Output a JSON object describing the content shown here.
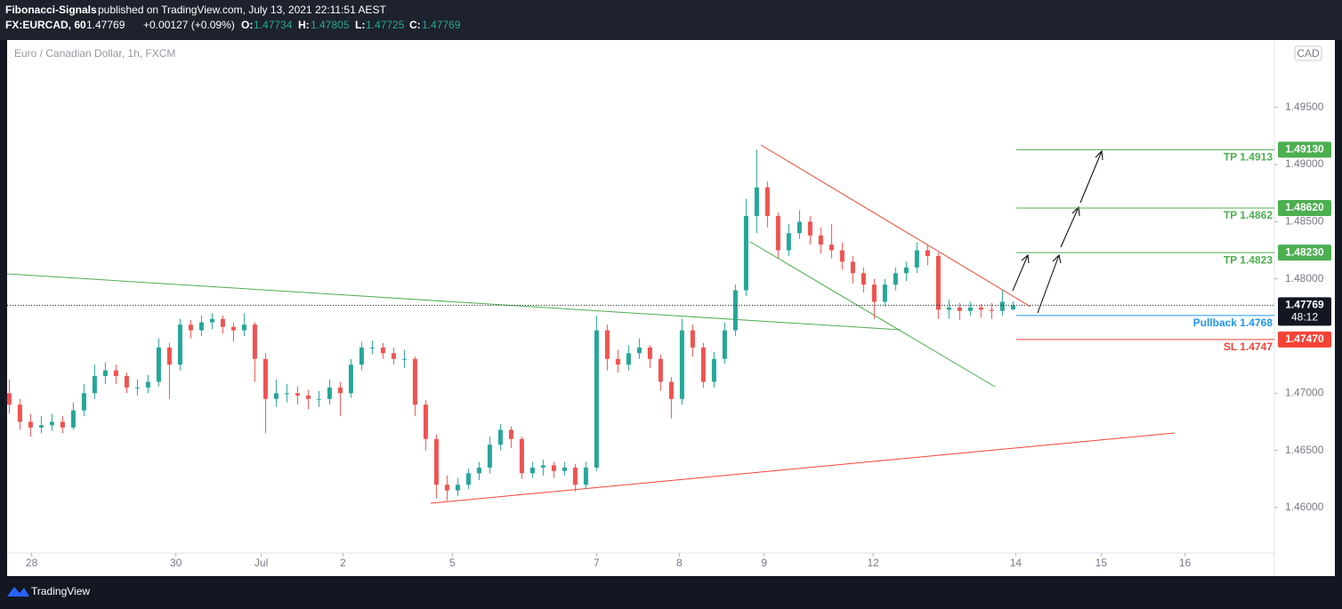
{
  "header": {
    "publisher": "Fibonacci-Signals",
    "published": "published on TradingView.com, July 13, 2021 22:11:51 AEST",
    "symbol": "FX:EURCAD, 60",
    "last": "1.47769",
    "change": "+0.00127 (+0.09%)",
    "o_label": "O:",
    "o": "1.47734",
    "h_label": "H:",
    "h": "1.47805",
    "l_label": "L:",
    "l": "1.47725",
    "c_label": "C:",
    "c": "1.47769"
  },
  "footer": {
    "brand": "TradingView"
  },
  "chart_data": {
    "type": "candlestick",
    "title": "Euro / Canadian Dollar, 1h, FXCM",
    "currency": "CAD",
    "up_color": "#26a69a",
    "down_color": "#ef5350",
    "xlim": [
      -0.2,
      118.47
    ],
    "ylim": [
      1.45603,
      1.50089
    ],
    "xticks": [
      {
        "value": 2.1,
        "label": "28"
      },
      {
        "value": 15.6,
        "label": "30"
      },
      {
        "value": 23.6,
        "label": "Jul"
      },
      {
        "value": 31.25,
        "label": "2"
      },
      {
        "value": 41.5,
        "label": "5"
      },
      {
        "value": 55,
        "label": "7"
      },
      {
        "value": 62.75,
        "label": "8"
      },
      {
        "value": 70.7,
        "label": "9"
      },
      {
        "value": 80.9,
        "label": "12"
      },
      {
        "value": 94.25,
        "label": "14"
      },
      {
        "value": 102.25,
        "label": "15"
      },
      {
        "value": 110.1,
        "label": "16"
      }
    ],
    "yticks": [
      {
        "value": 1.46,
        "label": "1.46000"
      },
      {
        "value": 1.465,
        "label": "1.46500"
      },
      {
        "value": 1.47,
        "label": "1.47000"
      },
      {
        "value": 1.48,
        "label": "1.48000"
      },
      {
        "value": 1.485,
        "label": "1.48500"
      },
      {
        "value": 1.49,
        "label": "1.49000"
      },
      {
        "value": 1.495,
        "label": "1.49500"
      }
    ],
    "current": {
      "value": 1.47769,
      "label": "1.47769",
      "countdown": "48:12"
    },
    "levels": [
      {
        "name": "TP 1.4913",
        "value": 1.4913,
        "label": "1.49130",
        "color": "#4caf50"
      },
      {
        "name": "TP 1.4862",
        "value": 1.4862,
        "label": "1.48620",
        "color": "#4caf50"
      },
      {
        "name": "TP 1.4823",
        "value": 1.4823,
        "label": "1.48230",
        "color": "#4caf50"
      },
      {
        "name": "Pullback 1.4768",
        "value": 1.4768,
        "label": "1.47680",
        "color": "#2196f3"
      },
      {
        "name": "SL 1.4747",
        "value": 1.4747,
        "label": "1.47470",
        "color": "#f44336"
      }
    ],
    "ohlc": [
      [
        1.47,
        1.4712,
        1.4682,
        1.469
      ],
      [
        1.469,
        1.4695,
        1.4668,
        1.4675
      ],
      [
        1.4675,
        1.4682,
        1.4662,
        1.467
      ],
      [
        1.467,
        1.468,
        1.4665,
        1.4672
      ],
      [
        1.4672,
        1.4682,
        1.4667,
        1.4675
      ],
      [
        1.4675,
        1.468,
        1.4665,
        1.467
      ],
      [
        1.467,
        1.4692,
        1.4668,
        1.4685
      ],
      [
        1.4685,
        1.4708,
        1.468,
        1.47
      ],
      [
        1.47,
        1.4725,
        1.4695,
        1.4715
      ],
      [
        1.4715,
        1.4727,
        1.4708,
        1.472
      ],
      [
        1.472,
        1.4725,
        1.4708,
        1.4715
      ],
      [
        1.4715,
        1.4718,
        1.47,
        1.4705
      ],
      [
        1.4705,
        1.4712,
        1.4698,
        1.4705
      ],
      [
        1.4705,
        1.4716,
        1.47,
        1.471
      ],
      [
        1.471,
        1.4748,
        1.4706,
        1.474
      ],
      [
        1.474,
        1.4744,
        1.4695,
        1.4725
      ],
      [
        1.4725,
        1.4765,
        1.472,
        1.476
      ],
      [
        1.476,
        1.4764,
        1.4748,
        1.4755
      ],
      [
        1.4755,
        1.4768,
        1.475,
        1.4762
      ],
      [
        1.4762,
        1.477,
        1.4756,
        1.4765
      ],
      [
        1.4765,
        1.4768,
        1.4752,
        1.4758
      ],
      [
        1.4758,
        1.4762,
        1.4745,
        1.4755
      ],
      [
        1.4755,
        1.477,
        1.475,
        1.476
      ],
      [
        1.476,
        1.4762,
        1.471,
        1.473
      ],
      [
        1.473,
        1.4735,
        1.4665,
        1.4695
      ],
      [
        1.4695,
        1.4712,
        1.4688,
        1.47
      ],
      [
        1.47,
        1.4708,
        1.4692,
        1.47
      ],
      [
        1.47,
        1.4706,
        1.469,
        1.4698
      ],
      [
        1.4698,
        1.4703,
        1.4686,
        1.4695
      ],
      [
        1.4695,
        1.4702,
        1.4688,
        1.4695
      ],
      [
        1.4695,
        1.4712,
        1.469,
        1.4705
      ],
      [
        1.4705,
        1.471,
        1.468,
        1.47
      ],
      [
        1.47,
        1.473,
        1.4696,
        1.4725
      ],
      [
        1.4725,
        1.4745,
        1.472,
        1.474
      ],
      [
        1.474,
        1.4746,
        1.4734,
        1.474
      ],
      [
        1.474,
        1.4744,
        1.473,
        1.4735
      ],
      [
        1.4735,
        1.474,
        1.4725,
        1.473
      ],
      [
        1.473,
        1.4738,
        1.4722,
        1.473
      ],
      [
        1.473,
        1.4732,
        1.468,
        1.469
      ],
      [
        1.469,
        1.4694,
        1.465,
        1.466
      ],
      [
        1.466,
        1.4664,
        1.4608,
        1.462
      ],
      [
        1.462,
        1.4628,
        1.4606,
        1.4615
      ],
      [
        1.4615,
        1.4626,
        1.461,
        1.462
      ],
      [
        1.462,
        1.4634,
        1.4616,
        1.463
      ],
      [
        1.463,
        1.464,
        1.4624,
        1.4635
      ],
      [
        1.4635,
        1.4662,
        1.463,
        1.4655
      ],
      [
        1.4655,
        1.4673,
        1.465,
        1.4668
      ],
      [
        1.4668,
        1.4671,
        1.4652,
        1.466
      ],
      [
        1.466,
        1.4662,
        1.4625,
        1.463
      ],
      [
        1.463,
        1.464,
        1.4626,
        1.4635
      ],
      [
        1.4635,
        1.4642,
        1.4628,
        1.4637
      ],
      [
        1.4637,
        1.464,
        1.4626,
        1.4632
      ],
      [
        1.4632,
        1.464,
        1.4628,
        1.4635
      ],
      [
        1.4635,
        1.4638,
        1.4614,
        1.462
      ],
      [
        1.462,
        1.464,
        1.4616,
        1.4635
      ],
      [
        1.4635,
        1.4768,
        1.4632,
        1.4755
      ],
      [
        1.4755,
        1.476,
        1.472,
        1.473
      ],
      [
        1.473,
        1.4738,
        1.4718,
        1.4725
      ],
      [
        1.4725,
        1.4742,
        1.472,
        1.4735
      ],
      [
        1.4735,
        1.4748,
        1.473,
        1.474
      ],
      [
        1.474,
        1.4742,
        1.4722,
        1.473
      ],
      [
        1.473,
        1.4734,
        1.4702,
        1.471
      ],
      [
        1.471,
        1.4714,
        1.4678,
        1.4695
      ],
      [
        1.4695,
        1.4765,
        1.469,
        1.4755
      ],
      [
        1.4755,
        1.476,
        1.4732,
        1.474
      ],
      [
        1.474,
        1.4744,
        1.4705,
        1.471
      ],
      [
        1.471,
        1.4736,
        1.4705,
        1.473
      ],
      [
        1.473,
        1.4762,
        1.4726,
        1.4755
      ],
      [
        1.4755,
        1.4795,
        1.475,
        1.479
      ],
      [
        1.479,
        1.487,
        1.4785,
        1.4855
      ],
      [
        1.4855,
        1.4913,
        1.484,
        1.488
      ],
      [
        1.488,
        1.4885,
        1.4845,
        1.4855
      ],
      [
        1.4855,
        1.4858,
        1.4818,
        1.4825
      ],
      [
        1.4825,
        1.4848,
        1.482,
        1.484
      ],
      [
        1.484,
        1.486,
        1.4835,
        1.485
      ],
      [
        1.485,
        1.4855,
        1.483,
        1.4838
      ],
      [
        1.4838,
        1.4845,
        1.4822,
        1.483
      ],
      [
        1.483,
        1.4848,
        1.4818,
        1.4825
      ],
      [
        1.4825,
        1.4832,
        1.4808,
        1.4815
      ],
      [
        1.4815,
        1.482,
        1.4796,
        1.4805
      ],
      [
        1.4805,
        1.481,
        1.4788,
        1.4795
      ],
      [
        1.4795,
        1.48,
        1.4765,
        1.478
      ],
      [
        1.478,
        1.48,
        1.4776,
        1.4795
      ],
      [
        1.4795,
        1.481,
        1.479,
        1.4805
      ],
      [
        1.4805,
        1.4815,
        1.4798,
        1.481
      ],
      [
        1.481,
        1.4832,
        1.4805,
        1.4825
      ],
      [
        1.4825,
        1.483,
        1.4812,
        1.482
      ],
      [
        1.482,
        1.4823,
        1.4765,
        1.4773
      ],
      [
        1.4773,
        1.4782,
        1.4765,
        1.4775
      ],
      [
        1.4775,
        1.4779,
        1.4764,
        1.4772
      ],
      [
        1.4772,
        1.478,
        1.4768,
        1.4775
      ],
      [
        1.4775,
        1.4778,
        1.4766,
        1.4773
      ],
      [
        1.4773,
        1.4779,
        1.4765,
        1.4772
      ],
      [
        1.4772,
        1.479,
        1.4768,
        1.478
      ],
      [
        1.47734,
        1.47805,
        1.47725,
        1.47769
      ]
    ]
  }
}
